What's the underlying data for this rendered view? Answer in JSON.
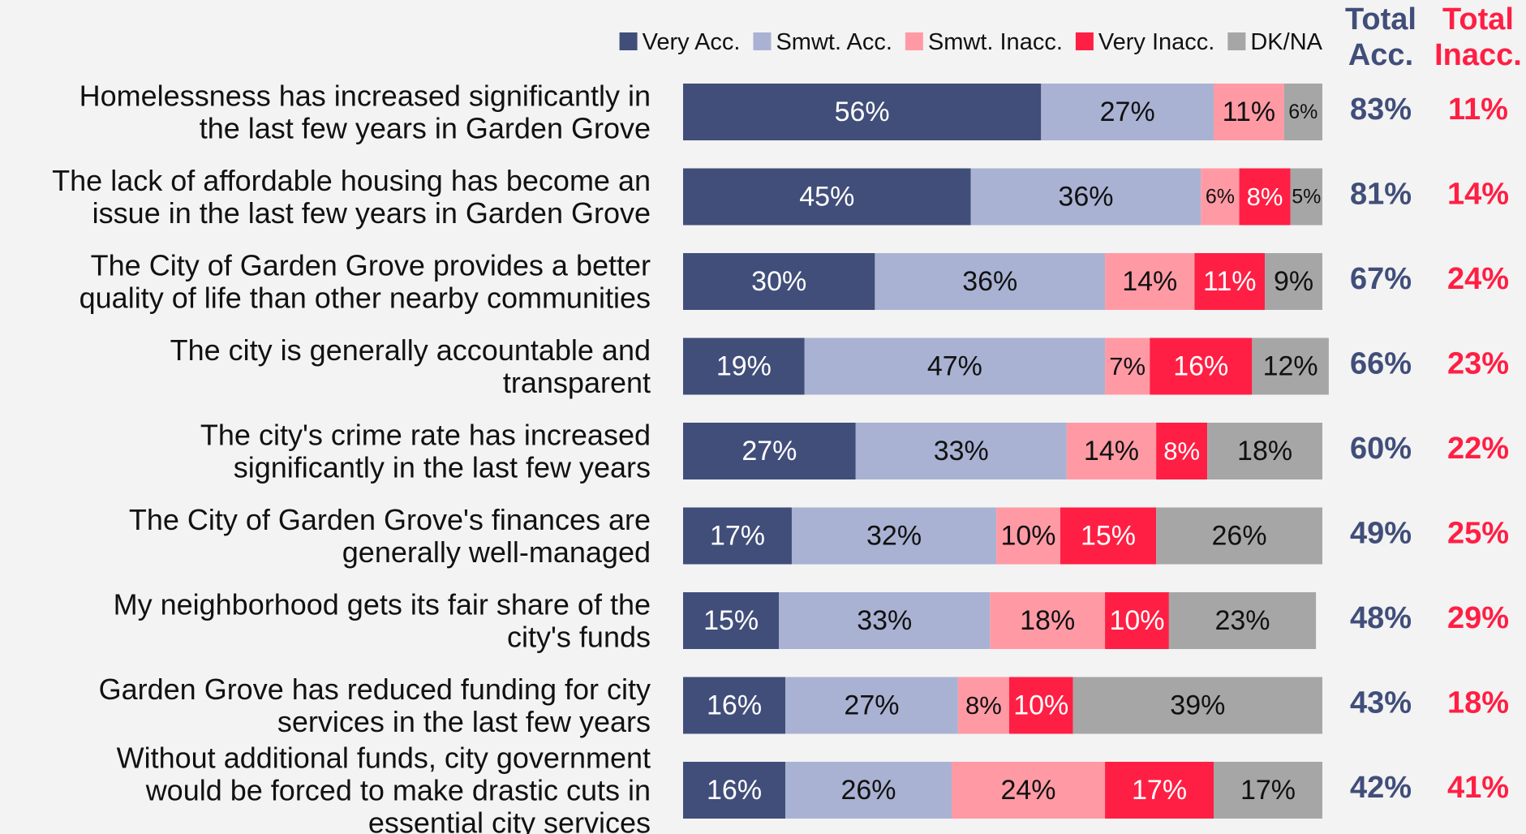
{
  "chart_data": {
    "type": "stacked_barh",
    "categories": [
      [
        "Homelessness has increased significantly in",
        "the last few years in Garden Grove"
      ],
      [
        "The lack of affordable housing has become an",
        "issue in the last few years in Garden Grove"
      ],
      [
        "The City of Garden Grove provides a better",
        "quality of life than other nearby communities"
      ],
      [
        "The city is generally accountable and",
        "transparent"
      ],
      [
        "The city's crime rate has increased",
        "significantly in the last few years"
      ],
      [
        "The City of Garden Grove's finances are",
        "generally well-managed"
      ],
      [
        "My neighborhood gets its fair share of the",
        "city's funds"
      ],
      [
        "Garden Grove has reduced funding for city",
        "services in the last few years"
      ],
      [
        "Without additional funds, city government",
        "would be forced to make drastic cuts in",
        "essential city services"
      ]
    ],
    "series": [
      {
        "name": "Very Acc.",
        "color": "#414e7a",
        "label_color": "#ffffff",
        "values": [
          56,
          45,
          30,
          19,
          27,
          17,
          15,
          16,
          16
        ],
        "value_labels": [
          "56%",
          "45%",
          "30%",
          "19%",
          "27%",
          "17%",
          "15%",
          "16%",
          "16%"
        ]
      },
      {
        "name": "Smwt. Acc.",
        "color": "#a9b2d3",
        "label_color": "#111111",
        "values": [
          27,
          36,
          36,
          47,
          33,
          32,
          33,
          27,
          26
        ],
        "value_labels": [
          "27%",
          "36%",
          "36%",
          "47%",
          "33%",
          "32%",
          "33%",
          "27%",
          "26%"
        ]
      },
      {
        "name": "Smwt. Inacc.",
        "color": "#ff9aa5",
        "label_color": "#111111",
        "values": [
          11,
          6,
          14,
          7,
          14,
          10,
          18,
          8,
          24
        ],
        "value_labels": [
          "11%",
          "6%",
          "14%",
          "7%",
          "14%",
          "10%",
          "18%",
          "8%",
          "24%"
        ]
      },
      {
        "name": "Very Inacc.",
        "color": "#ff1f44",
        "label_color": "#ffffff",
        "values": [
          null,
          8,
          11,
          16,
          8,
          15,
          10,
          10,
          17
        ],
        "value_labels": [
          null,
          "8%",
          "11%",
          "16%",
          "8%",
          "15%",
          "10%",
          "10%",
          "17%"
        ]
      },
      {
        "name": "DK/NA",
        "color": "#a6a6a6",
        "label_color": "#111111",
        "values": [
          6,
          5,
          9,
          12,
          18,
          26,
          23,
          39,
          17
        ],
        "value_labels": [
          "6%",
          "5%",
          "9%",
          "12%",
          "18%",
          "26%",
          "23%",
          "39%",
          "17%"
        ]
      }
    ],
    "xlim": [
      0,
      100
    ],
    "legend": "top",
    "totals": [
      {
        "header": [
          "Total",
          "Acc."
        ],
        "color": "#414e7a",
        "values": [
          83,
          81,
          67,
          66,
          60,
          49,
          48,
          43,
          42
        ],
        "value_labels": [
          "83%",
          "81%",
          "67%",
          "66%",
          "60%",
          "49%",
          "48%",
          "43%",
          "42%"
        ]
      },
      {
        "header": [
          "Total",
          "Inacc."
        ],
        "color": "#ff1f44",
        "values": [
          11,
          14,
          24,
          23,
          22,
          25,
          29,
          18,
          41
        ],
        "value_labels": [
          "11%",
          "14%",
          "24%",
          "23%",
          "22%",
          "25%",
          "29%",
          "18%",
          "41%"
        ]
      }
    ]
  }
}
